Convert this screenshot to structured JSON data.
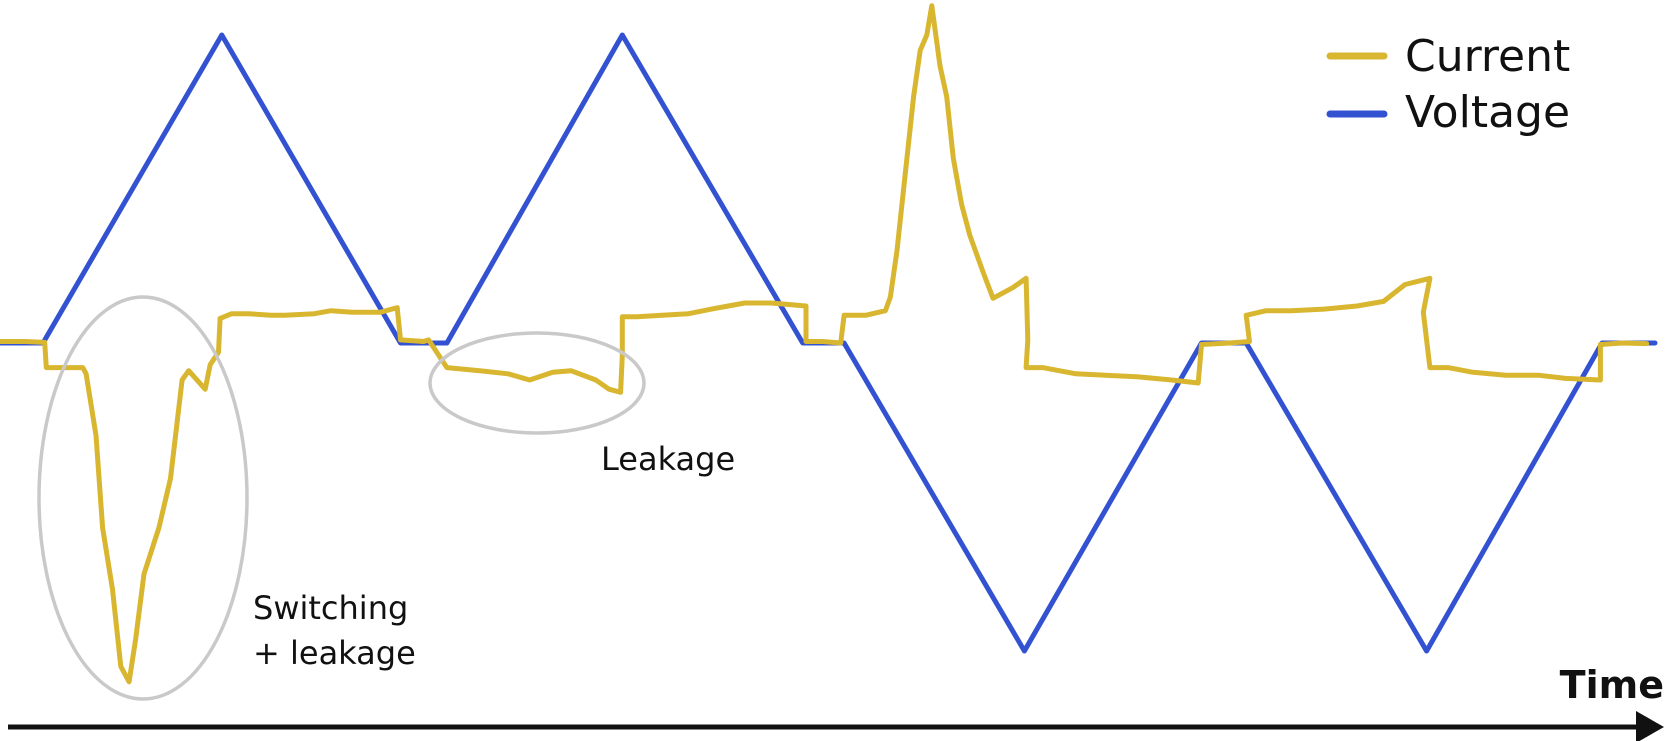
{
  "chart_data": {
    "type": "line",
    "title": "",
    "xlabel": "Time",
    "ylabel": "",
    "grid": false,
    "legend_position": "top-right",
    "xlim": [
      0,
      100
    ],
    "ylim": [
      -10,
      10
    ],
    "series": [
      {
        "name": "Current",
        "color": "#d9b630",
        "points": [
          [
            0,
            0.05
          ],
          [
            1.5,
            0.05
          ],
          [
            2.7,
            0.02
          ],
          [
            2.8,
            -0.8
          ],
          [
            5,
            -0.8
          ],
          [
            5.2,
            -1.0
          ],
          [
            5.8,
            -3
          ],
          [
            6.2,
            -6
          ],
          [
            6.8,
            -8
          ],
          [
            7.3,
            -10.5
          ],
          [
            7.8,
            -11
          ],
          [
            8.2,
            -9.6
          ],
          [
            8.7,
            -7.5
          ],
          [
            9.6,
            -6
          ],
          [
            10.3,
            -4.4
          ],
          [
            11,
            -1.2
          ],
          [
            11.4,
            -0.9
          ],
          [
            12.4,
            -1.5
          ],
          [
            12.7,
            -0.7
          ],
          [
            13.2,
            -0.3
          ],
          [
            13.3,
            0.8
          ],
          [
            14,
            0.95
          ],
          [
            15,
            0.95
          ],
          [
            16.4,
            0.9
          ],
          [
            17.2,
            0.9
          ],
          [
            19,
            0.95
          ],
          [
            20,
            1.05
          ],
          [
            21.3,
            1.0
          ],
          [
            23,
            1.0
          ],
          [
            24,
            1.15
          ],
          [
            24.2,
            0.1
          ],
          [
            25.6,
            0.05
          ],
          [
            25.9,
            0.1
          ],
          [
            27,
            -0.8
          ],
          [
            29,
            -0.9
          ],
          [
            30.7,
            -1.0
          ],
          [
            32,
            -1.2
          ],
          [
            33.4,
            -0.95
          ],
          [
            34.5,
            -0.9
          ],
          [
            36,
            -1.2
          ],
          [
            36.8,
            -1.5
          ],
          [
            37.5,
            -1.6
          ],
          [
            37.6,
            -0.4
          ],
          [
            37.6,
            0.85
          ],
          [
            38.5,
            0.85
          ],
          [
            40,
            0.9
          ],
          [
            41.6,
            0.95
          ],
          [
            43,
            1.1
          ],
          [
            44,
            1.2
          ],
          [
            45,
            1.3
          ],
          [
            46.6,
            1.3
          ],
          [
            48.7,
            1.2
          ],
          [
            48.7,
            0.05
          ],
          [
            49.7,
            0.05
          ],
          [
            50.8,
            0.0
          ],
          [
            51,
            0.9
          ],
          [
            52.3,
            0.9
          ],
          [
            53.5,
            1.05
          ],
          [
            53.8,
            1.5
          ],
          [
            54.2,
            3
          ],
          [
            54.6,
            5
          ],
          [
            54.9,
            6.5
          ],
          [
            55.2,
            8
          ],
          [
            55.6,
            9.5
          ],
          [
            56,
            10
          ],
          [
            56.3,
            10.95
          ],
          [
            56.8,
            9
          ],
          [
            57.2,
            8
          ],
          [
            57.6,
            6
          ],
          [
            58.1,
            4.5
          ],
          [
            58.6,
            3.5
          ],
          [
            59.4,
            2.3
          ],
          [
            60,
            1.45
          ],
          [
            61.2,
            1.8
          ],
          [
            62,
            2.1
          ],
          [
            62.1,
            0.1
          ],
          [
            62,
            -0.8
          ],
          [
            63,
            -0.8
          ],
          [
            65,
            -1.0
          ],
          [
            66.8,
            -1.05
          ],
          [
            68.8,
            -1.1
          ],
          [
            70.8,
            -1.2
          ],
          [
            72.4,
            -1.3
          ],
          [
            72.6,
            -0.05
          ],
          [
            74.3,
            0.0
          ],
          [
            75.5,
            0.05
          ],
          [
            75.3,
            0.9
          ],
          [
            76.5,
            1.05
          ],
          [
            78,
            1.05
          ],
          [
            80,
            1.1
          ],
          [
            82,
            1.2
          ],
          [
            83.6,
            1.35
          ],
          [
            84.9,
            1.9
          ],
          [
            86.4,
            2.1
          ],
          [
            86,
            1.0
          ],
          [
            86.4,
            -0.8
          ],
          [
            87.5,
            -0.8
          ],
          [
            89,
            -0.95
          ],
          [
            91,
            -1.05
          ],
          [
            93,
            -1.05
          ],
          [
            94.6,
            -1.15
          ],
          [
            96.7,
            -1.2
          ],
          [
            96.7,
            -0.05
          ],
          [
            98,
            0.0
          ],
          [
            99.5,
            -0.02
          ]
        ]
      },
      {
        "name": "Voltage",
        "color": "#3352d1",
        "points": [
          [
            0,
            0
          ],
          [
            2.6,
            0
          ],
          [
            13.4,
            10
          ],
          [
            24.2,
            0
          ],
          [
            27,
            0
          ],
          [
            37.6,
            10
          ],
          [
            48.5,
            0
          ],
          [
            51,
            0
          ],
          [
            61.9,
            -10
          ],
          [
            72.6,
            0
          ],
          [
            75.3,
            0
          ],
          [
            86.2,
            -10
          ],
          [
            96.8,
            0
          ],
          [
            100,
            0
          ]
        ]
      }
    ],
    "annotations": [
      {
        "text_lines": [
          "Switching",
          "+ leakage"
        ]
      },
      {
        "text_lines": [
          "Leakage"
        ]
      }
    ]
  }
}
